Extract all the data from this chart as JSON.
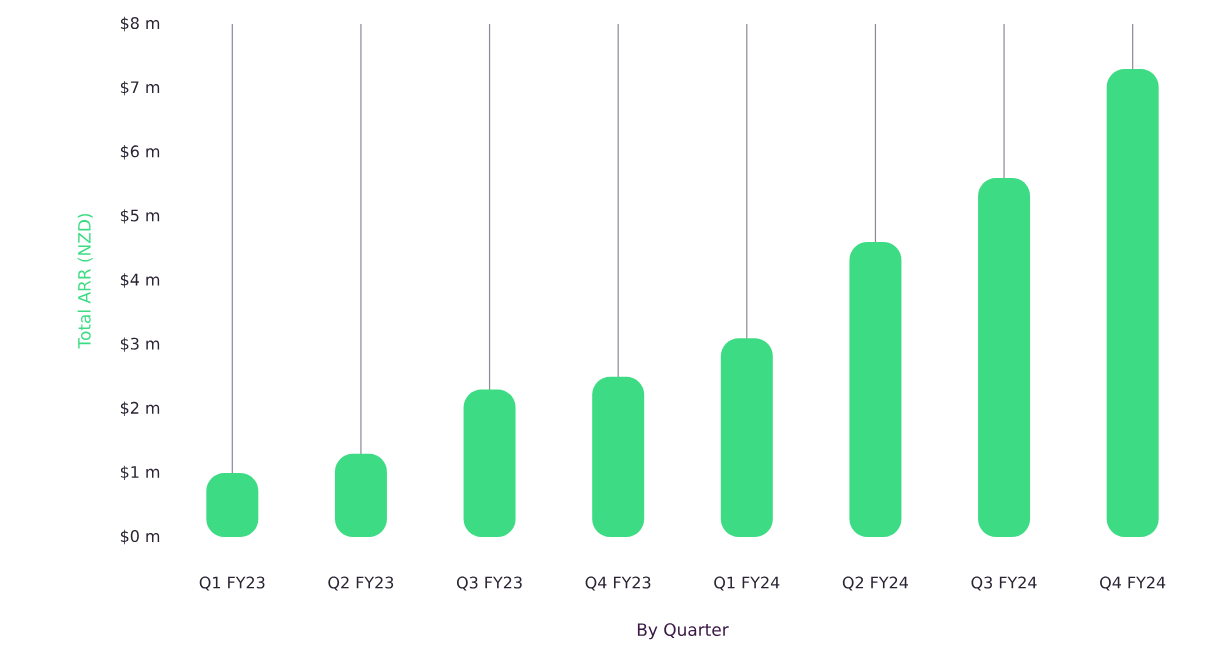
{
  "chart_data": {
    "type": "bar",
    "xlabel": "By Quarter",
    "ylabel": "Total ARR (NZD)",
    "categories": [
      "Q1 FY23",
      "Q2 FY23",
      "Q3 FY23",
      "Q4 FY23",
      "Q1 FY24",
      "Q2 FY24",
      "Q3 FY24",
      "Q4 FY24"
    ],
    "values": [
      1.0,
      1.3,
      2.3,
      2.5,
      3.1,
      4.6,
      5.6,
      7.3
    ],
    "color": "#3ddc84",
    "ylim": [
      0,
      8
    ],
    "yticks": [
      {
        "value": 0,
        "label": "$0 m"
      },
      {
        "value": 1,
        "label": "$1 m"
      },
      {
        "value": 2,
        "label": "$2 m"
      },
      {
        "value": 3,
        "label": "$3 m"
      },
      {
        "value": 4,
        "label": "$4 m"
      },
      {
        "value": 5,
        "label": "$5 m"
      },
      {
        "value": 6,
        "label": "$6 m"
      },
      {
        "value": 7,
        "label": "$7 m"
      },
      {
        "value": 8,
        "label": "$8 m"
      }
    ],
    "grid": "x"
  }
}
